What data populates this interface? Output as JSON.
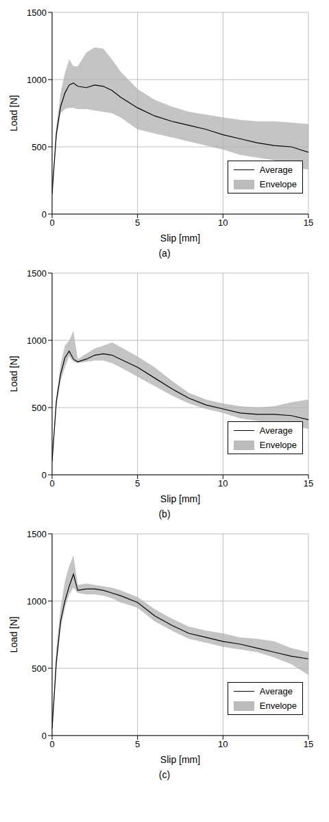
{
  "chart_data": [
    {
      "type": "line",
      "title": "(a)",
      "x_label": "Slip [mm]",
      "y_label": "Load [N]",
      "x": [
        0,
        0.25,
        0.5,
        0.75,
        1,
        1.25,
        1.5,
        2,
        2.5,
        3,
        3.5,
        4,
        5,
        6,
        7,
        8,
        9,
        10,
        11,
        12,
        13,
        14,
        15
      ],
      "xlim": [
        0,
        15
      ],
      "xticks": [
        0,
        5,
        10,
        15
      ],
      "ylim": [
        0,
        1500
      ],
      "yticks": [
        0,
        500,
        1000,
        1500
      ],
      "grid": true,
      "legend": "lower right",
      "series": [
        {
          "name": "Average",
          "color": "#000000",
          "values": [
            150,
            600,
            800,
            900,
            960,
            975,
            950,
            940,
            960,
            950,
            920,
            870,
            790,
            730,
            690,
            660,
            630,
            590,
            560,
            530,
            510,
            500,
            460
          ]
        },
        {
          "name": "Envelope",
          "color": "#b0b0b0",
          "low": [
            150,
            550,
            750,
            780,
            790,
            790,
            780,
            780,
            770,
            760,
            750,
            720,
            630,
            600,
            570,
            540,
            510,
            480,
            440,
            420,
            400,
            350,
            330
          ],
          "high": [
            150,
            650,
            900,
            1050,
            1150,
            1100,
            1100,
            1200,
            1240,
            1230,
            1150,
            1060,
            930,
            850,
            800,
            760,
            740,
            720,
            700,
            690,
            690,
            680,
            670
          ]
        }
      ]
    },
    {
      "type": "line",
      "title": "(b)",
      "x_label": "Slip [mm]",
      "y_label": "Load [N]",
      "x": [
        0,
        0.25,
        0.5,
        0.75,
        1,
        1.25,
        1.5,
        2,
        2.5,
        3,
        3.5,
        4,
        5,
        6,
        7,
        8,
        9,
        10,
        11,
        12,
        13,
        14,
        15
      ],
      "xlim": [
        0,
        15
      ],
      "xticks": [
        0,
        5,
        10,
        15
      ],
      "ylim": [
        0,
        1500
      ],
      "yticks": [
        0,
        500,
        1000,
        1500
      ],
      "grid": true,
      "legend": "lower right",
      "series": [
        {
          "name": "Average",
          "color": "#000000",
          "values": [
            100,
            550,
            750,
            870,
            920,
            860,
            840,
            860,
            890,
            900,
            890,
            860,
            800,
            720,
            640,
            570,
            520,
            490,
            460,
            450,
            450,
            440,
            410
          ]
        },
        {
          "name": "Envelope",
          "color": "#b0b0b0",
          "low": [
            100,
            500,
            700,
            800,
            880,
            840,
            830,
            840,
            850,
            850,
            830,
            800,
            730,
            660,
            590,
            530,
            490,
            460,
            420,
            400,
            390,
            370,
            340
          ],
          "high": [
            100,
            580,
            820,
            960,
            1000,
            1070,
            860,
            900,
            940,
            960,
            985,
            950,
            880,
            800,
            700,
            610,
            560,
            530,
            510,
            500,
            510,
            540,
            560
          ]
        }
      ]
    },
    {
      "type": "line",
      "title": "(c)",
      "x_label": "Slip [mm]",
      "y_label": "Load [N]",
      "x": [
        0,
        0.25,
        0.5,
        0.75,
        1,
        1.25,
        1.5,
        2,
        2.5,
        3,
        3.5,
        4,
        5,
        6,
        7,
        8,
        9,
        10,
        11,
        12,
        13,
        14,
        15
      ],
      "xlim": [
        0,
        15
      ],
      "xticks": [
        0,
        5,
        10,
        15
      ],
      "ylim": [
        0,
        1500
      ],
      "yticks": [
        0,
        500,
        1000,
        1500
      ],
      "grid": true,
      "legend": "lower right",
      "series": [
        {
          "name": "Average",
          "color": "#000000",
          "values": [
            50,
            550,
            850,
            1000,
            1110,
            1200,
            1080,
            1090,
            1090,
            1080,
            1060,
            1040,
            990,
            890,
            820,
            760,
            730,
            700,
            680,
            650,
            620,
            590,
            570
          ]
        },
        {
          "name": "Envelope",
          "color": "#b0b0b0",
          "low": [
            50,
            500,
            800,
            950,
            1050,
            1100,
            1060,
            1050,
            1050,
            1040,
            1020,
            990,
            950,
            850,
            780,
            720,
            690,
            660,
            640,
            620,
            580,
            530,
            450
          ],
          "high": [
            50,
            650,
            950,
            1150,
            1260,
            1340,
            1120,
            1130,
            1120,
            1110,
            1100,
            1080,
            1030,
            940,
            870,
            810,
            780,
            760,
            730,
            720,
            700,
            650,
            620
          ]
        }
      ]
    }
  ]
}
